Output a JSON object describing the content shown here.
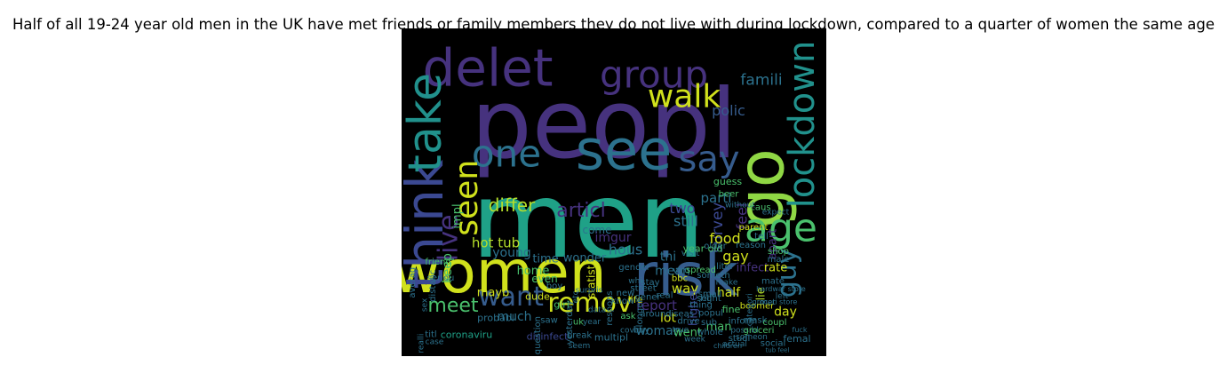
{
  "title": "Half of all 19-24 year old men in the UK have met friends or family members they do not live with during lockdown, compared to a quarter of women the same age",
  "colors": {
    "background": "#000000",
    "purple": "#46327e",
    "indigo": "#3b4992",
    "blue": "#365c8d",
    "steel": "#2c728e",
    "teal": "#21918c",
    "sea": "#1fa187",
    "green": "#4ac16d",
    "lime": "#a0da39",
    "yellow": "#d0e11c",
    "dark": "#440154"
  },
  "words": [
    {
      "text": "peopl",
      "color": "#46327e"
    },
    {
      "text": "men",
      "color": "#1fa187"
    },
    {
      "text": "women",
      "color": "#d0e11c"
    },
    {
      "text": "risk",
      "color": "#365c8d"
    },
    {
      "text": "delet",
      "color": "#46327e"
    },
    {
      "text": "go",
      "color": "#8fd744"
    },
    {
      "text": "think",
      "color": "#3b4992"
    },
    {
      "text": "lockdown",
      "color": "#21918c"
    },
    {
      "text": "group",
      "color": "#46327e"
    },
    {
      "text": "take",
      "color": "#21918c"
    },
    {
      "text": "see",
      "color": "#2c728e"
    },
    {
      "text": "one",
      "color": "#2c728e"
    },
    {
      "text": "walk",
      "color": "#d0e11c"
    },
    {
      "text": "age",
      "color": "#4ac16d"
    },
    {
      "text": "guy",
      "color": "#2c728e"
    },
    {
      "text": "say",
      "color": "#365c8d"
    },
    {
      "text": "seen",
      "color": "#d0e11c"
    },
    {
      "text": "live",
      "color": "#46327e"
    },
    {
      "text": "want",
      "color": "#365c8d"
    },
    {
      "text": "remov",
      "color": "#d0e11c"
    },
    {
      "text": "meet",
      "color": "#4ac16d"
    },
    {
      "text": "articl",
      "color": "#46327e"
    },
    {
      "text": "differ",
      "color": "#b5de2b"
    },
    {
      "text": "hot tub",
      "color": "#b5de2b"
    },
    {
      "text": "wonder",
      "color": "#2c728e"
    },
    {
      "text": "polic",
      "color": "#365c8d"
    },
    {
      "text": "famili",
      "color": "#2c728e"
    },
    {
      "text": "parti",
      "color": "#2c728e"
    },
    {
      "text": "survey",
      "color": "#3b4992"
    },
    {
      "text": "feel",
      "color": "#46327e"
    },
    {
      "text": "apart",
      "color": "#46327e"
    },
    {
      "text": "young",
      "color": "#2c728e"
    },
    {
      "text": "come",
      "color": "#2c728e"
    },
    {
      "text": "time",
      "color": "#2c728e"
    },
    {
      "text": "impl",
      "color": "#4ac16d"
    },
    {
      "text": "keep",
      "color": "#4ac16d"
    },
    {
      "text": "two",
      "color": "#3b4992"
    },
    {
      "text": "gay",
      "color": "#d0e11c"
    },
    {
      "text": "still",
      "color": "#2c728e"
    },
    {
      "text": "food",
      "color": "#d0e11c"
    },
    {
      "text": "hous",
      "color": "#2c728e"
    },
    {
      "text": "imgur",
      "color": "#46327e"
    },
    {
      "text": "home",
      "color": "#4ac16d"
    },
    {
      "text": "thi",
      "color": "#2c728e"
    },
    {
      "text": "infect",
      "color": "#46327e"
    },
    {
      "text": "rate",
      "color": "#d0e11c"
    },
    {
      "text": "lie",
      "color": "#b5de2b"
    },
    {
      "text": "mean",
      "color": "#2c728e"
    },
    {
      "text": "way",
      "color": "#d0e11c"
    },
    {
      "text": "half",
      "color": "#d0e11c"
    },
    {
      "text": "report",
      "color": "#46327e"
    },
    {
      "text": "lot",
      "color": "#d0e11c"
    },
    {
      "text": "much",
      "color": "#2c728e"
    },
    {
      "text": "higher",
      "color": "#3b4992"
    },
    {
      "text": "day",
      "color": "#d0e11c"
    },
    {
      "text": "woman",
      "color": "#2c728e"
    },
    {
      "text": "went",
      "color": "#4ac16d"
    },
    {
      "text": "man",
      "color": "#4ac16d"
    },
    {
      "text": "mayb",
      "color": "#d0e11c"
    },
    {
      "text": "even",
      "color": "#4ac16d"
    },
    {
      "text": "statist",
      "color": "#d0e11c"
    },
    {
      "text": "probabl",
      "color": "#2c728e"
    },
    {
      "text": "coronaviru",
      "color": "#1fa187"
    },
    {
      "text": "disinfect",
      "color": "#3b4992"
    },
    {
      "text": "break",
      "color": "#2c728e"
    },
    {
      "text": "multipl",
      "color": "#2c728e"
    },
    {
      "text": "femal",
      "color": "#2c728e"
    },
    {
      "text": "social",
      "color": "#2c728e"
    },
    {
      "text": "someon",
      "color": "#2c728e"
    },
    {
      "text": "friend",
      "color": "#4ac16d"
    },
    {
      "text": "seriou",
      "color": "#2c728e"
    },
    {
      "text": "distanc",
      "color": "#2c728e"
    },
    {
      "text": "averag",
      "color": "#2c728e"
    },
    {
      "text": "sex",
      "color": "#2c728e"
    },
    {
      "text": "titl",
      "color": "#2c728e"
    },
    {
      "text": "realli",
      "color": "#2c728e"
    },
    {
      "text": "case",
      "color": "#2c728e"
    },
    {
      "text": "dude",
      "color": "#d0e11c"
    },
    {
      "text": "saw",
      "color": "#2c728e"
    },
    {
      "text": "question",
      "color": "#2c728e"
    },
    {
      "text": "yesterday",
      "color": "#2c728e"
    },
    {
      "text": "etc",
      "color": "#2c728e"
    },
    {
      "text": "uk",
      "color": "#4ac16d"
    },
    {
      "text": "data",
      "color": "#2c728e"
    },
    {
      "text": "year",
      "color": "#2c728e"
    },
    {
      "text": "ask",
      "color": "#4ac16d"
    },
    {
      "text": "respons",
      "color": "#2c728e"
    },
    {
      "text": "around",
      "color": "#2c728e"
    },
    {
      "text": "life",
      "color": "#d0e11c"
    },
    {
      "text": "popul",
      "color": "#2c728e"
    },
    {
      "text": "small",
      "color": "#2c728e"
    },
    {
      "text": "thing",
      "color": "#2c728e"
    },
    {
      "text": "fine",
      "color": "#4ac16d"
    },
    {
      "text": "sub",
      "color": "#2c728e"
    },
    {
      "text": "inform",
      "color": "#2c728e"
    },
    {
      "text": "whole",
      "color": "#2c728e"
    },
    {
      "text": "studi",
      "color": "#2c728e"
    },
    {
      "text": "boomer",
      "color": "#d0e11c"
    },
    {
      "text": "mask",
      "color": "#2c728e"
    },
    {
      "text": "possibl",
      "color": "#2c728e"
    },
    {
      "text": "coupl",
      "color": "#4ac16d"
    },
    {
      "text": "parent",
      "color": "#d0e11c"
    },
    {
      "text": "tell",
      "color": "#2c728e"
    },
    {
      "text": "shop",
      "color": "#4ac16d"
    },
    {
      "text": "mate",
      "color": "#2c728e"
    },
    {
      "text": "reason",
      "color": "#2c728e"
    },
    {
      "text": "guess",
      "color": "#4ac16d"
    },
    {
      "text": "beer",
      "color": "#4ac16d"
    },
    {
      "text": "without",
      "color": "#2c728e"
    },
    {
      "text": "caus",
      "color": "#4ac16d"
    },
    {
      "text": "expect",
      "color": "#2c728e"
    },
    {
      "text": "older",
      "color": "#2c728e"
    },
    {
      "text": "visit",
      "color": "#2c728e"
    },
    {
      "text": "viru",
      "color": "#2c728e"
    },
    {
      "text": "year old",
      "color": "#4ac16d"
    },
    {
      "text": "spread",
      "color": "#4ac16d"
    },
    {
      "text": "someth",
      "color": "#2c728e"
    },
    {
      "text": "liter",
      "color": "#2c728e"
    },
    {
      "text": "bbc",
      "color": "#d0e11c"
    },
    {
      "text": "gener",
      "color": "#2c728e"
    },
    {
      "text": "stay",
      "color": "#2c728e"
    },
    {
      "text": "street",
      "color": "#2c728e"
    },
    {
      "text": "longer",
      "color": "#2c728e"
    },
    {
      "text": "drive",
      "color": "#2c728e"
    },
    {
      "text": "new",
      "color": "#2c728e"
    },
    {
      "text": "know",
      "color": "#2c728e"
    },
    {
      "text": "self",
      "color": "#2c728e"
    },
    {
      "text": "diseas",
      "color": "#2c728e"
    },
    {
      "text": "right",
      "color": "#2c728e"
    },
    {
      "text": "make",
      "color": "#2c728e"
    },
    {
      "text": "categori",
      "color": "#2c728e"
    },
    {
      "text": "buy",
      "color": "#2c728e"
    },
    {
      "text": "real",
      "color": "#2c728e"
    },
    {
      "text": "true",
      "color": "#2c728e"
    },
    {
      "text": "week",
      "color": "#2c728e"
    },
    {
      "text": "actual",
      "color": "#2c728e"
    },
    {
      "text": "groceri",
      "color": "#4ac16d"
    },
    {
      "text": "met",
      "color": "#2c728e"
    },
    {
      "text": "left",
      "color": "#2c728e"
    },
    {
      "text": "male",
      "color": "#2c728e"
    },
    {
      "text": "hardwar store",
      "color": "#2c728e"
    },
    {
      "text": "groceri store",
      "color": "#2c728e"
    },
    {
      "text": "girl",
      "color": "#4ac16d"
    },
    {
      "text": "boy",
      "color": "#2c728e"
    },
    {
      "text": "surpris",
      "color": "#2c728e"
    },
    {
      "text": "gender",
      "color": "#2c728e"
    },
    {
      "text": "whi",
      "color": "#2c728e"
    },
    {
      "text": "covid",
      "color": "#2c728e"
    },
    {
      "text": "children",
      "color": "#2c728e"
    },
    {
      "text": "seem",
      "color": "#2c728e"
    },
    {
      "text": "tub feel",
      "color": "#2c728e"
    },
    {
      "text": "fuck",
      "color": "#2c728e"
    }
  ]
}
